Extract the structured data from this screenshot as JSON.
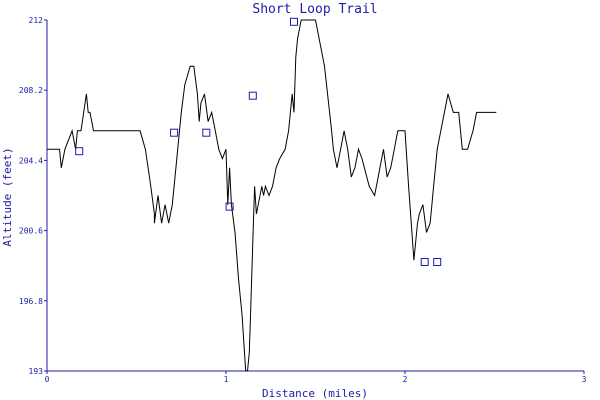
{
  "chart_data": {
    "type": "line",
    "title": "Short Loop Trail",
    "xlabel": "Distance (miles)",
    "ylabel": "Altitude (feet)",
    "xlim": [
      0,
      3
    ],
    "ylim": [
      193,
      212
    ],
    "x_ticks": [
      "0",
      "1",
      "2",
      "3"
    ],
    "y_ticks": [
      "193",
      "196.8",
      "200.6",
      "204.4",
      "208.2",
      "212"
    ],
    "grid": false,
    "colors": {
      "line": "#000000",
      "axis": "#1c1caa",
      "marker": "#1c1caa"
    },
    "series": [
      {
        "x": [
          0,
          0.07,
          0.08,
          0.1,
          0.14,
          0.16,
          0.17,
          0.19,
          0.22,
          0.23,
          0.24,
          0.26,
          0.3,
          0.4,
          0.52,
          0.55,
          0.58,
          0.6,
          0.6,
          0.62,
          0.64,
          0.66,
          0.68,
          0.7,
          0.72,
          0.74,
          0.75,
          0.77,
          0.8,
          0.82,
          0.84,
          0.85,
          0.86,
          0.88,
          0.9,
          0.92,
          0.94,
          0.96,
          0.98,
          1.0,
          1.01,
          1.02,
          1.03,
          1.05,
          1.07,
          1.09,
          1.1,
          1.11,
          1.12,
          1.13,
          1.14,
          1.15,
          1.16,
          1.17,
          1.18,
          1.2,
          1.21,
          1.22,
          1.24,
          1.26,
          1.28,
          1.3,
          1.33,
          1.35,
          1.37,
          1.38,
          1.39,
          1.4,
          1.41,
          1.42,
          1.44,
          1.46,
          1.5,
          1.55,
          1.59,
          1.6,
          1.62,
          1.64,
          1.66,
          1.68,
          1.7,
          1.72,
          1.74,
          1.76,
          1.8,
          1.83,
          1.85,
          1.86,
          1.88,
          1.9,
          1.92,
          1.94,
          1.96,
          2.0,
          2.02,
          2.05,
          2.07,
          2.08,
          2.1,
          2.12,
          2.14,
          2.15,
          2.16,
          2.17,
          2.18,
          2.19,
          2.2,
          2.22,
          2.24,
          2.27,
          2.3,
          2.32,
          2.35,
          2.38,
          2.4,
          2.44,
          2.51
        ],
        "y": [
          205.0,
          205.0,
          204.0,
          205.0,
          206.0,
          205.0,
          206.0,
          206.0,
          208.0,
          207.0,
          207.0,
          206.0,
          206.0,
          206.0,
          206.0,
          205.0,
          203.0,
          201.5,
          201.0,
          202.5,
          201.0,
          202.0,
          201.0,
          202.0,
          204.0,
          206.0,
          207.0,
          208.5,
          209.5,
          209.5,
          208.0,
          206.5,
          207.5,
          208.0,
          206.5,
          207.0,
          206.0,
          205.0,
          204.5,
          205.0,
          202.0,
          204.0,
          202.0,
          200.5,
          198.0,
          196.0,
          194.5,
          193.0,
          193.0,
          194.0,
          197.0,
          200.0,
          203.0,
          201.5,
          202.0,
          203.0,
          202.5,
          203.0,
          202.5,
          203.0,
          204.0,
          204.5,
          205.0,
          206.0,
          208.0,
          207.0,
          210.0,
          211.0,
          211.5,
          212.0,
          212.0,
          212.0,
          212.0,
          209.5,
          206.0,
          205.0,
          204.0,
          205.0,
          206.0,
          205.0,
          203.5,
          204.0,
          205.0,
          204.5,
          203.0,
          202.5,
          203.5,
          204.0,
          205.0,
          203.5,
          204.0,
          205.0,
          206.0,
          206.0,
          203.0,
          199.0,
          201.0,
          201.5,
          202.0,
          200.5,
          201.0,
          202.0,
          203.0,
          204.0,
          205.0,
          205.5,
          206.0,
          207.0,
          208.0,
          207.0,
          207.0,
          205.0,
          205.0,
          206.0,
          207.0,
          207.0,
          207.0
        ]
      }
    ],
    "markers": [
      {
        "x": 0.18,
        "y": 204.9
      },
      {
        "x": 0.71,
        "y": 205.9
      },
      {
        "x": 0.89,
        "y": 205.9
      },
      {
        "x": 1.02,
        "y": 201.9
      },
      {
        "x": 1.15,
        "y": 207.9
      },
      {
        "x": 1.38,
        "y": 211.9
      },
      {
        "x": 2.11,
        "y": 198.9
      },
      {
        "x": 2.18,
        "y": 198.9
      }
    ]
  }
}
